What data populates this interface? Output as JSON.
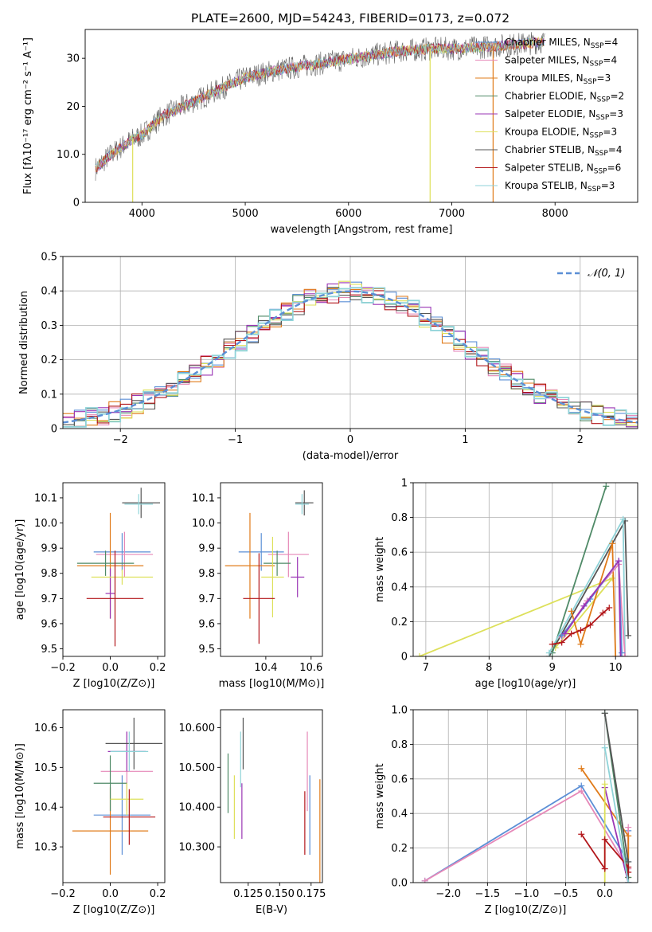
{
  "figure_title": "PLATE=2600, MJD=54243, FIBERID=0173, z=0.072",
  "models": [
    {
      "name": "Chabrier MILES, N_SSP=4",
      "label_main": "Chabrier MILES, N",
      "label_sub": "SSP",
      "label_tail": "=4",
      "color": "#5b8fd6"
    },
    {
      "name": "Salpeter MILES, N_SSP=4",
      "label_main": "Salpeter MILES, N",
      "label_sub": "SSP",
      "label_tail": "=4",
      "color": "#e688b8"
    },
    {
      "name": "Kroupa MILES, N_SSP=3",
      "label_main": "Kroupa MILES, N",
      "label_sub": "SSP",
      "label_tail": "=3",
      "color": "#e07b1a"
    },
    {
      "name": "Chabrier ELODIE, N_SSP=2",
      "label_main": "Chabrier ELODIE, N",
      "label_sub": "SSP",
      "label_tail": "=2",
      "color": "#4f8a67"
    },
    {
      "name": "Salpeter ELODIE, N_SSP=3",
      "label_main": "Salpeter ELODIE, N",
      "label_sub": "SSP",
      "label_tail": "=3",
      "color": "#9a35b5"
    },
    {
      "name": "Kroupa ELODIE, N_SSP=3",
      "label_main": "Kroupa ELODIE, N",
      "label_sub": "SSP",
      "label_tail": "=3",
      "color": "#dde05a"
    },
    {
      "name": "Chabrier STELIB, N_SSP=4",
      "label_main": "Chabrier STELIB, N",
      "label_sub": "SSP",
      "label_tail": "=4",
      "color": "#555555"
    },
    {
      "name": "Salpeter STELIB, N_SSP=6",
      "label_main": "Salpeter STELIB, N",
      "label_sub": "SSP",
      "label_tail": "=6",
      "color": "#b2161a"
    },
    {
      "name": "Kroupa STELIB, N_SSP=3",
      "label_main": "Kroupa STELIB, N",
      "label_sub": "SSP",
      "label_tail": "=3",
      "color": "#8fd3d8"
    }
  ],
  "chart_data": [
    {
      "id": "spectrum",
      "type": "line",
      "xlabel": "wavelength [Angstrom, rest frame]",
      "ylabel": "Flux [fλ10⁻¹⁷ erg cm⁻² s⁻¹ A⁻¹]",
      "xlim": [
        3450,
        8800
      ],
      "ylim": [
        0,
        36
      ],
      "xticks": [
        4000,
        5000,
        6000,
        7000,
        8000
      ],
      "yticks": [
        0,
        10,
        20,
        30
      ],
      "grid": false,
      "legend": "right",
      "continuum": [
        [
          3550,
          7
        ],
        [
          3700,
          10
        ],
        [
          3900,
          13
        ],
        [
          4000,
          14
        ],
        [
          4200,
          18
        ],
        [
          4500,
          21
        ],
        [
          4800,
          24
        ],
        [
          5000,
          26
        ],
        [
          5300,
          27.5
        ],
        [
          5600,
          28.5
        ],
        [
          5900,
          29.5
        ],
        [
          6200,
          30.5
        ],
        [
          6500,
          31.5
        ],
        [
          6800,
          32
        ],
        [
          7100,
          32
        ],
        [
          7400,
          32.5
        ],
        [
          7700,
          33
        ],
        [
          7900,
          33.5
        ]
      ],
      "xrange": [
        3550,
        7900
      ],
      "drops": [
        {
          "x": 3910,
          "model": 5
        },
        {
          "x": 6790,
          "model": 5
        },
        {
          "x": 7400,
          "model": 2
        }
      ]
    },
    {
      "id": "residuals",
      "type": "histogram",
      "xlabel": "(data-model)/error",
      "ylabel": "Normed distribution",
      "xlim": [
        -2.5,
        2.5
      ],
      "ylim": [
        0,
        0.5
      ],
      "xticks": [
        -2,
        -1,
        0,
        1,
        2
      ],
      "yticks": [
        0,
        0.1,
        0.2,
        0.3,
        0.4,
        0.5
      ],
      "grid": true,
      "bin_width": 0.1,
      "reference": {
        "label": "𝒩(0, 1)",
        "mu": 0,
        "sigma": 1,
        "color": "#5b8fd6"
      }
    },
    {
      "id": "age_vs_Z",
      "type": "errorbar",
      "xlabel": "Z [log10(Z/Z⊙)]",
      "ylabel": "age  [log10(age/yr)]",
      "xlim": [
        -0.2,
        0.23
      ],
      "ylim": [
        9.47,
        10.16
      ],
      "xticks": [
        -0.2,
        0,
        0.2
      ],
      "yticks": [
        9.5,
        9.6,
        9.7,
        9.8,
        9.9,
        10.0,
        10.1
      ],
      "points": [
        {
          "model": 0,
          "x": 0.05,
          "y": 9.885,
          "xerr": 0.12,
          "yerr": 0.075
        },
        {
          "model": 1,
          "x": 0.06,
          "y": 9.875,
          "xerr": 0.12,
          "yerr": 0.09
        },
        {
          "model": 2,
          "x": 0.0,
          "y": 9.83,
          "xerr": 0.14,
          "yerr": 0.21
        },
        {
          "model": 3,
          "x": -0.02,
          "y": 9.84,
          "xerr": 0.12,
          "yerr": 0.05
        },
        {
          "model": 4,
          "x": 0.0,
          "y": 9.72,
          "xerr": 0.02,
          "yerr": 0.1
        },
        {
          "model": 5,
          "x": 0.05,
          "y": 9.785,
          "xerr": 0.13,
          "yerr": 0.03
        },
        {
          "model": 6,
          "x": 0.13,
          "y": 10.08,
          "xerr": 0.08,
          "yerr": 0.06
        },
        {
          "model": 7,
          "x": 0.02,
          "y": 9.7,
          "xerr": 0.12,
          "yerr": 0.19
        },
        {
          "model": 8,
          "x": 0.12,
          "y": 10.075,
          "xerr": 0.06,
          "yerr": 0.04
        }
      ]
    },
    {
      "id": "age_vs_mass",
      "type": "errorbar",
      "xlabel": "mass [log10(M/M⊙)]",
      "ylabel": "",
      "xlim": [
        10.2,
        10.65
      ],
      "ylim": [
        9.47,
        10.16
      ],
      "xticks": [
        10.4,
        10.6
      ],
      "yticks": [
        9.5,
        9.6,
        9.7,
        9.8,
        9.9,
        10.0,
        10.1
      ],
      "points": [
        {
          "model": 0,
          "x": 10.38,
          "y": 9.885,
          "xerr": 0.1,
          "yerr": 0.075
        },
        {
          "model": 1,
          "x": 10.5,
          "y": 9.875,
          "xerr": 0.09,
          "yerr": 0.09
        },
        {
          "model": 2,
          "x": 10.33,
          "y": 9.83,
          "xerr": 0.11,
          "yerr": 0.21
        },
        {
          "model": 3,
          "x": 10.45,
          "y": 9.84,
          "xerr": 0.06,
          "yerr": 0.05
        },
        {
          "model": 4,
          "x": 10.54,
          "y": 9.785,
          "xerr": 0.03,
          "yerr": 0.08
        },
        {
          "model": 5,
          "x": 10.43,
          "y": 9.785,
          "xerr": 0.05,
          "yerr": 0.16
        },
        {
          "model": 6,
          "x": 10.57,
          "y": 10.08,
          "xerr": 0.04,
          "yerr": 0.05
        },
        {
          "model": 7,
          "x": 10.37,
          "y": 9.7,
          "xerr": 0.07,
          "yerr": 0.18
        },
        {
          "model": 8,
          "x": 10.56,
          "y": 10.075,
          "xerr": 0.03,
          "yerr": 0.04
        }
      ]
    },
    {
      "id": "mass_weight_vs_age",
      "type": "line",
      "xlabel": "age  [log10(age/yr)]",
      "ylabel": "mass weight",
      "xlim": [
        6.8,
        10.35
      ],
      "ylim": [
        0,
        1
      ],
      "xticks": [
        7,
        8,
        9,
        10
      ],
      "yticks": [
        0,
        0.2,
        0.4,
        0.6,
        0.8,
        1.0
      ],
      "grid": true,
      "series": [
        {
          "model": 5,
          "x": [
            6.9,
            9.95,
            9.05
          ],
          "y": [
            0.0,
            0.45,
            0.05
          ]
        },
        {
          "model": 6,
          "x": [
            8.95,
            10.15,
            10.2
          ],
          "y": [
            0.0,
            0.78,
            0.12
          ]
        },
        {
          "model": 3,
          "x": [
            9.0,
            9.85
          ],
          "y": [
            0.02,
            0.98
          ]
        },
        {
          "model": 8,
          "x": [
            8.95,
            10.12,
            10.15
          ],
          "y": [
            0.02,
            0.79,
            0.0
          ]
        },
        {
          "model": 2,
          "x": [
            9.3,
            9.45,
            9.95,
            10.0
          ],
          "y": [
            0.26,
            0.07,
            0.65,
            0.0
          ]
        },
        {
          "model": 7,
          "x": [
            9.0,
            9.15,
            9.3,
            9.45,
            9.6,
            9.8,
            9.9
          ],
          "y": [
            0.07,
            0.08,
            0.13,
            0.15,
            0.18,
            0.25,
            0.28
          ]
        },
        {
          "model": 1,
          "x": [
            9.15,
            9.55,
            10.05,
            10.15
          ],
          "y": [
            0.11,
            0.32,
            0.53,
            0.0
          ]
        },
        {
          "model": 0,
          "x": [
            9.15,
            9.6,
            10.05,
            10.1
          ],
          "y": [
            0.12,
            0.33,
            0.55,
            0.02
          ]
        },
        {
          "model": 4,
          "x": [
            9.2,
            9.5,
            10.05,
            10.08
          ],
          "y": [
            0.13,
            0.29,
            0.55,
            0.0
          ]
        }
      ]
    },
    {
      "id": "mass_vs_Z",
      "type": "errorbar",
      "xlabel": "Z [log10(Z/Z⊙)]",
      "ylabel": "mass [log10(M/M⊙)]",
      "xlim": [
        -0.2,
        0.23
      ],
      "ylim": [
        10.21,
        10.645
      ],
      "xticks": [
        -0.2,
        0,
        0.2
      ],
      "yticks": [
        10.3,
        10.4,
        10.5,
        10.6
      ],
      "points": [
        {
          "model": 0,
          "x": 0.05,
          "y": 10.38,
          "xerr": 0.12,
          "yerr": 0.1
        },
        {
          "model": 1,
          "x": 0.07,
          "y": 10.49,
          "xerr": 0.11,
          "yerr": 0.1
        },
        {
          "model": 2,
          "x": 0.0,
          "y": 10.34,
          "xerr": 0.16,
          "yerr": 0.11
        },
        {
          "model": 3,
          "x": 0.0,
          "y": 10.46,
          "xerr": 0.07,
          "yerr": 0.07
        },
        {
          "model": 4,
          "x": 0.07,
          "y": 10.54,
          "xerr": 0.08,
          "yerr": 0.05
        },
        {
          "model": 5,
          "x": 0.07,
          "y": 10.42,
          "xerr": 0.07,
          "yerr": 0.04
        },
        {
          "model": 6,
          "x": 0.1,
          "y": 10.56,
          "xerr": 0.12,
          "yerr": 0.065
        },
        {
          "model": 7,
          "x": 0.08,
          "y": 10.375,
          "xerr": 0.11,
          "yerr": 0.07
        },
        {
          "model": 8,
          "x": 0.08,
          "y": 10.54,
          "xerr": 0.08,
          "yerr": 0.05
        }
      ]
    },
    {
      "id": "mass_vs_ebv",
      "type": "errorbar",
      "xlabel": "E(B-V)",
      "ylabel": "",
      "xlim": [
        0.103,
        0.184
      ],
      "ylim": [
        10.21,
        10.645
      ],
      "xticks": [
        0.125,
        0.15,
        0.175
      ],
      "yticks": [
        10.3,
        10.4,
        10.5,
        10.6
      ],
      "points": [
        {
          "model": 0,
          "x": 0.174,
          "y": 10.38,
          "xerr": 0,
          "yerr": 0.1
        },
        {
          "model": 1,
          "x": 0.172,
          "y": 10.49,
          "xerr": 0,
          "yerr": 0.1
        },
        {
          "model": 2,
          "x": 0.182,
          "y": 10.34,
          "xerr": 0,
          "yerr": 0.13
        },
        {
          "model": 3,
          "x": 0.109,
          "y": 10.46,
          "xerr": 0,
          "yerr": 0.075
        },
        {
          "model": 4,
          "x": 0.12,
          "y": 10.39,
          "xerr": 0,
          "yerr": 0.07
        },
        {
          "model": 5,
          "x": 0.114,
          "y": 10.4,
          "xerr": 0,
          "yerr": 0.08
        },
        {
          "model": 6,
          "x": 0.121,
          "y": 10.56,
          "xerr": 0,
          "yerr": 0.065
        },
        {
          "model": 7,
          "x": 0.17,
          "y": 10.36,
          "xerr": 0,
          "yerr": 0.08
        },
        {
          "model": 8,
          "x": 0.119,
          "y": 10.52,
          "xerr": 0,
          "yerr": 0.07
        }
      ]
    },
    {
      "id": "mass_weight_vs_Z",
      "type": "line",
      "xlabel": "Z [log10(Z/Z⊙)]",
      "ylabel": "mass weight",
      "xlim": [
        -2.45,
        0.42
      ],
      "ylim": [
        0,
        1
      ],
      "xticks": [
        -2.0,
        -1.5,
        -1.0,
        -0.5,
        0.0
      ],
      "yticks": [
        0,
        0.2,
        0.4,
        0.6,
        0.8,
        1.0
      ],
      "grid": true,
      "series": [
        {
          "model": 0,
          "x": [
            -2.3,
            -0.3,
            0.3,
            0.3
          ],
          "y": [
            0.01,
            0.56,
            0.12,
            0.3
          ]
        },
        {
          "model": 1,
          "x": [
            -2.3,
            -0.3,
            0.3,
            0.3
          ],
          "y": [
            0.01,
            0.53,
            0.08,
            0.32
          ]
        },
        {
          "model": 2,
          "x": [
            -0.3,
            0.3,
            0.3
          ],
          "y": [
            0.66,
            0.27,
            0.03
          ]
        },
        {
          "model": 3,
          "x": [
            0.0,
            0.3
          ],
          "y": [
            0.98,
            0.03
          ]
        },
        {
          "model": 4,
          "x": [
            0.0,
            0.3
          ],
          "y": [
            0.55,
            0.0
          ]
        },
        {
          "model": 5,
          "x": [
            0.0,
            0.0
          ],
          "y": [
            0.57,
            0.0
          ]
        },
        {
          "model": 6,
          "x": [
            0.0,
            0.3,
            0.3
          ],
          "y": [
            0.98,
            0.12,
            0.0
          ]
        },
        {
          "model": 7,
          "x": [
            -0.3,
            0.0,
            0.0,
            0.3,
            0.3
          ],
          "y": [
            0.28,
            0.08,
            0.25,
            0.09,
            0.06
          ]
        },
        {
          "model": 8,
          "x": [
            0.0,
            0.3
          ],
          "y": [
            0.78,
            0.0
          ]
        }
      ]
    }
  ]
}
